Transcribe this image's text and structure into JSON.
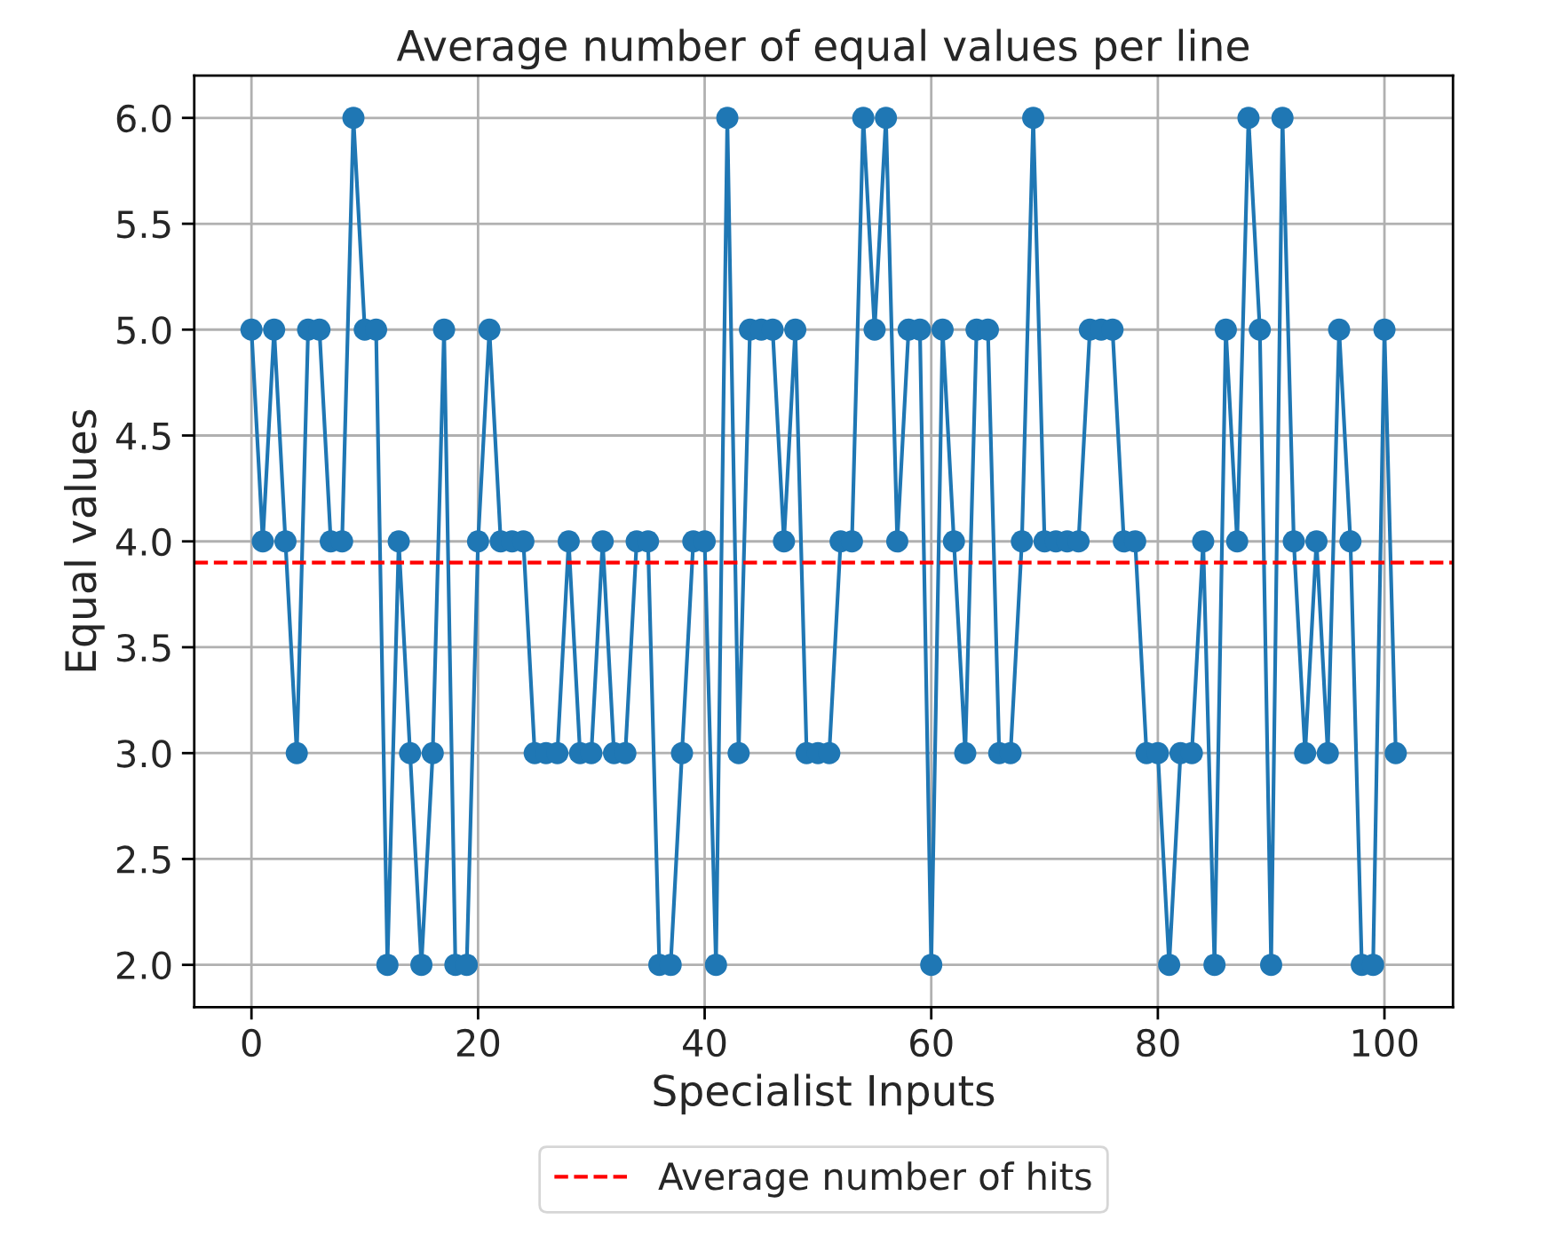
{
  "chart_data": {
    "type": "line",
    "title": "Average number of equal values per line",
    "xlabel": "Specialist Inputs",
    "ylabel": "Equal values",
    "x": [
      0,
      1,
      2,
      3,
      4,
      5,
      6,
      7,
      8,
      9,
      10,
      11,
      12,
      13,
      14,
      15,
      16,
      17,
      18,
      19,
      20,
      21,
      22,
      23,
      24,
      25,
      26,
      27,
      28,
      29,
      30,
      31,
      32,
      33,
      34,
      35,
      36,
      37,
      38,
      39,
      40,
      41,
      42,
      43,
      44,
      45,
      46,
      47,
      48,
      49,
      50,
      51,
      52,
      53,
      54,
      55,
      56,
      57,
      58,
      59,
      60,
      61,
      62,
      63,
      64,
      65,
      66,
      67,
      68,
      69,
      70,
      71,
      72,
      73,
      74,
      75,
      76,
      77,
      78,
      79,
      80,
      81,
      82,
      83,
      84,
      85,
      86,
      87,
      88,
      89,
      90,
      91,
      92,
      93,
      94,
      95,
      96,
      97,
      98,
      99,
      100,
      101
    ],
    "series": [
      {
        "color": "#1f77b4",
        "values": [
          5,
          4,
          5,
          4,
          3,
          5,
          5,
          4,
          4,
          6,
          5,
          5,
          2,
          4,
          3,
          2,
          3,
          5,
          2,
          2,
          4,
          5,
          4,
          4,
          4,
          3,
          3,
          3,
          4,
          3,
          3,
          4,
          3,
          3,
          4,
          4,
          2,
          2,
          3,
          4,
          4,
          2,
          6,
          3,
          5,
          5,
          5,
          4,
          5,
          3,
          3,
          3,
          4,
          4,
          6,
          5,
          6,
          4,
          5,
          5,
          2,
          5,
          4,
          3,
          5,
          5,
          3,
          3,
          4,
          6,
          4,
          4,
          4,
          4,
          5,
          5,
          5,
          4,
          4,
          3,
          3,
          2,
          3,
          3,
          4,
          2,
          5,
          4,
          6,
          5,
          2,
          6,
          4,
          3,
          4,
          3,
          5,
          4,
          2,
          2,
          5,
          3
        ]
      }
    ],
    "ref_lines": [
      {
        "axis": "y",
        "value": 3.9,
        "label": "Average number of hits",
        "color": "#ff0000",
        "line_style": "dashed"
      }
    ],
    "xlim": [
      -5.05,
      106.05
    ],
    "ylim": [
      1.8,
      6.2
    ],
    "xticks": [
      0,
      20,
      40,
      60,
      80,
      100
    ],
    "yticks": [
      {
        "value": 2,
        "label": "2.0"
      },
      {
        "value": 2.5,
        "label": "2.5"
      },
      {
        "value": 3,
        "label": "3.0"
      },
      {
        "value": 3.5,
        "label": "3.5"
      },
      {
        "value": 4,
        "label": "4.0"
      },
      {
        "value": 4.5,
        "label": "4.5"
      },
      {
        "value": 5,
        "label": "5.0"
      },
      {
        "value": 5.5,
        "label": "5.5"
      },
      {
        "value": 6,
        "label": "6.0"
      }
    ],
    "grid": true,
    "legend": "bottom",
    "marker": "circle",
    "line_style": "solid"
  }
}
